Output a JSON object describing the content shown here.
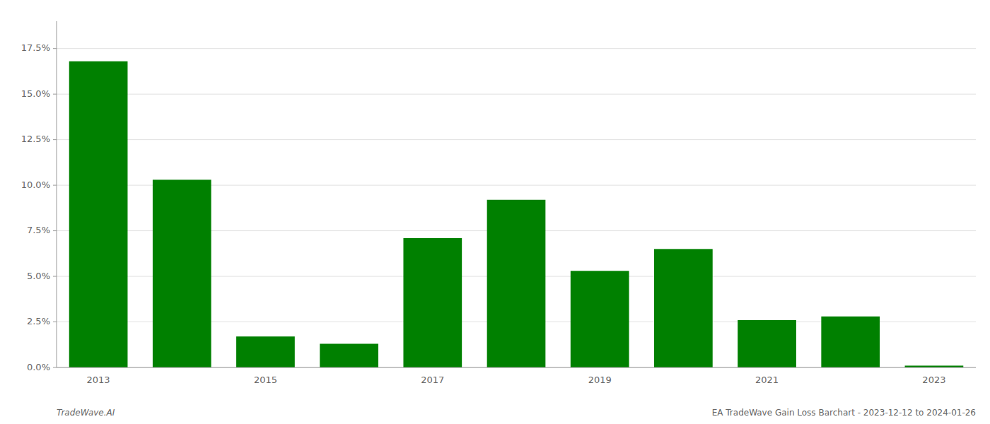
{
  "chart_data": {
    "type": "bar",
    "categories": [
      "2013",
      null,
      "2015",
      null,
      "2017",
      null,
      "2019",
      null,
      "2021",
      null,
      "2023"
    ],
    "values": [
      0.168,
      0.103,
      0.017,
      0.013,
      0.071,
      0.092,
      0.053,
      0.065,
      0.026,
      0.028,
      0.001
    ],
    "color": "#008000",
    "ylim": [
      0,
      0.19
    ],
    "yticks": [
      {
        "value": 0.0,
        "label": "0.0%"
      },
      {
        "value": 0.025,
        "label": "2.5%"
      },
      {
        "value": 0.05,
        "label": "5.0%"
      },
      {
        "value": 0.075,
        "label": "7.5%"
      },
      {
        "value": 0.1,
        "label": "10.0%"
      },
      {
        "value": 0.125,
        "label": "12.5%"
      },
      {
        "value": 0.15,
        "label": "15.0%"
      },
      {
        "value": 0.175,
        "label": "17.5%"
      }
    ],
    "grid": true,
    "annotations": [
      "TradeWave.AI",
      "EA TradeWave Gain Loss Barchart - 2023-12-12 to 2024-01-26"
    ]
  }
}
